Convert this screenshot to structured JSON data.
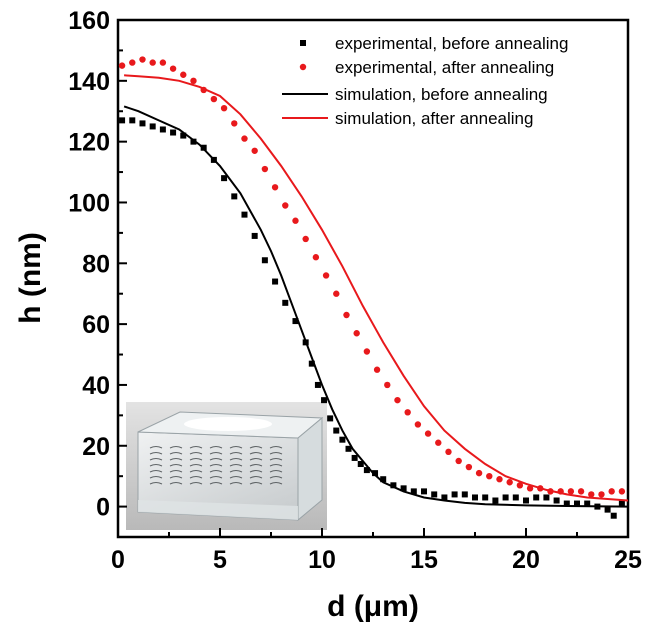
{
  "chart_data": {
    "type": "scatter",
    "xlabel": "d (μm)",
    "ylabel": "h (nm)",
    "xlim": [
      0,
      25
    ],
    "ylim": [
      -10,
      160
    ],
    "x_ticks": [
      0,
      5,
      10,
      15,
      20,
      25
    ],
    "y_ticks": [
      0,
      20,
      40,
      60,
      80,
      100,
      120,
      140,
      160
    ],
    "grid": false,
    "legend_position": "top-right",
    "inset_image": "3D device schematic (glass block with embedded coils)",
    "series": [
      {
        "name": "experimental, before annealing",
        "kind": "scatter",
        "marker": "square",
        "color": "#000000",
        "x": [
          0.2,
          0.7,
          1.2,
          1.7,
          2.2,
          2.7,
          3.2,
          3.7,
          4.2,
          4.7,
          5.2,
          5.7,
          6.2,
          6.7,
          7.2,
          7.7,
          8.2,
          8.7,
          9.2,
          9.5,
          9.8,
          10.1,
          10.4,
          10.7,
          11.0,
          11.3,
          11.6,
          11.9,
          12.2,
          12.6,
          13.0,
          13.5,
          14.0,
          14.5,
          15.0,
          15.5,
          16.0,
          16.5,
          17.0,
          17.5,
          18.0,
          18.5,
          19.0,
          19.5,
          20.0,
          20.5,
          21.0,
          21.5,
          22.0,
          22.5,
          23.0,
          23.5,
          24.0,
          24.3,
          24.7
        ],
        "y": [
          127,
          127,
          126,
          125,
          124,
          123,
          122,
          120,
          118,
          114,
          108,
          102,
          96,
          89,
          81,
          74,
          67,
          61,
          54,
          47,
          40,
          35,
          29,
          25,
          22,
          19,
          16,
          14,
          12,
          11,
          9,
          7,
          6,
          5,
          5,
          4,
          3,
          4,
          4,
          3,
          3,
          2,
          3,
          3,
          2,
          3,
          3,
          2,
          1,
          1,
          1,
          0,
          -1,
          -3,
          1
        ]
      },
      {
        "name": "experimental, after annealing",
        "kind": "scatter",
        "marker": "circle",
        "color": "#e8191c",
        "x": [
          0.2,
          0.7,
          1.2,
          1.7,
          2.2,
          2.7,
          3.2,
          3.7,
          4.2,
          4.7,
          5.2,
          5.7,
          6.2,
          6.7,
          7.2,
          7.7,
          8.2,
          8.7,
          9.2,
          9.7,
          10.2,
          10.7,
          11.2,
          11.7,
          12.2,
          12.7,
          13.2,
          13.7,
          14.2,
          14.7,
          15.2,
          15.7,
          16.2,
          16.7,
          17.2,
          17.7,
          18.2,
          18.7,
          19.2,
          19.7,
          20.2,
          20.7,
          21.2,
          21.7,
          22.2,
          22.7,
          23.2,
          23.7,
          24.2,
          24.7
        ],
        "y": [
          145,
          146,
          147,
          146,
          146,
          144,
          142,
          140,
          137,
          134,
          131,
          126,
          121,
          117,
          111,
          105,
          99,
          94,
          88,
          82,
          76,
          70,
          63,
          57,
          51,
          45,
          40,
          35,
          31,
          27,
          24,
          21,
          18,
          15,
          13,
          11,
          10,
          9,
          8,
          7,
          6,
          6,
          5,
          5,
          5,
          5,
          4,
          4,
          5,
          5
        ]
      },
      {
        "name": "simulation, before annealing",
        "kind": "line",
        "color": "#000000",
        "x": [
          0.3,
          1,
          2,
          3,
          4,
          5,
          6,
          7,
          7.5,
          8,
          8.5,
          9,
          9.5,
          10,
          10.5,
          11,
          11.5,
          12,
          12.5,
          13,
          14,
          15,
          16,
          17,
          18,
          20,
          22,
          25
        ],
        "y": [
          131.6,
          130,
          127,
          124,
          119,
          112,
          103,
          91,
          84,
          76,
          67,
          58,
          49,
          40,
          32,
          25,
          19,
          15,
          11,
          8,
          5,
          3,
          2,
          1.2,
          0.8,
          0.4,
          0.2,
          0
        ]
      },
      {
        "name": "simulation, after annealing",
        "kind": "line",
        "color": "#e8191c",
        "x": [
          0.3,
          1,
          2,
          3,
          4,
          5,
          6,
          7,
          8,
          9,
          10,
          11,
          12,
          13,
          14,
          15,
          16,
          17,
          18,
          19,
          20,
          21,
          22,
          23,
          24,
          25
        ],
        "y": [
          141.8,
          141.5,
          141,
          140,
          138,
          135,
          129,
          121,
          112,
          102,
          91,
          79,
          66,
          54,
          43,
          33,
          25,
          19,
          14,
          10,
          7.5,
          5.5,
          4,
          3,
          2.5,
          2
        ]
      }
    ]
  }
}
